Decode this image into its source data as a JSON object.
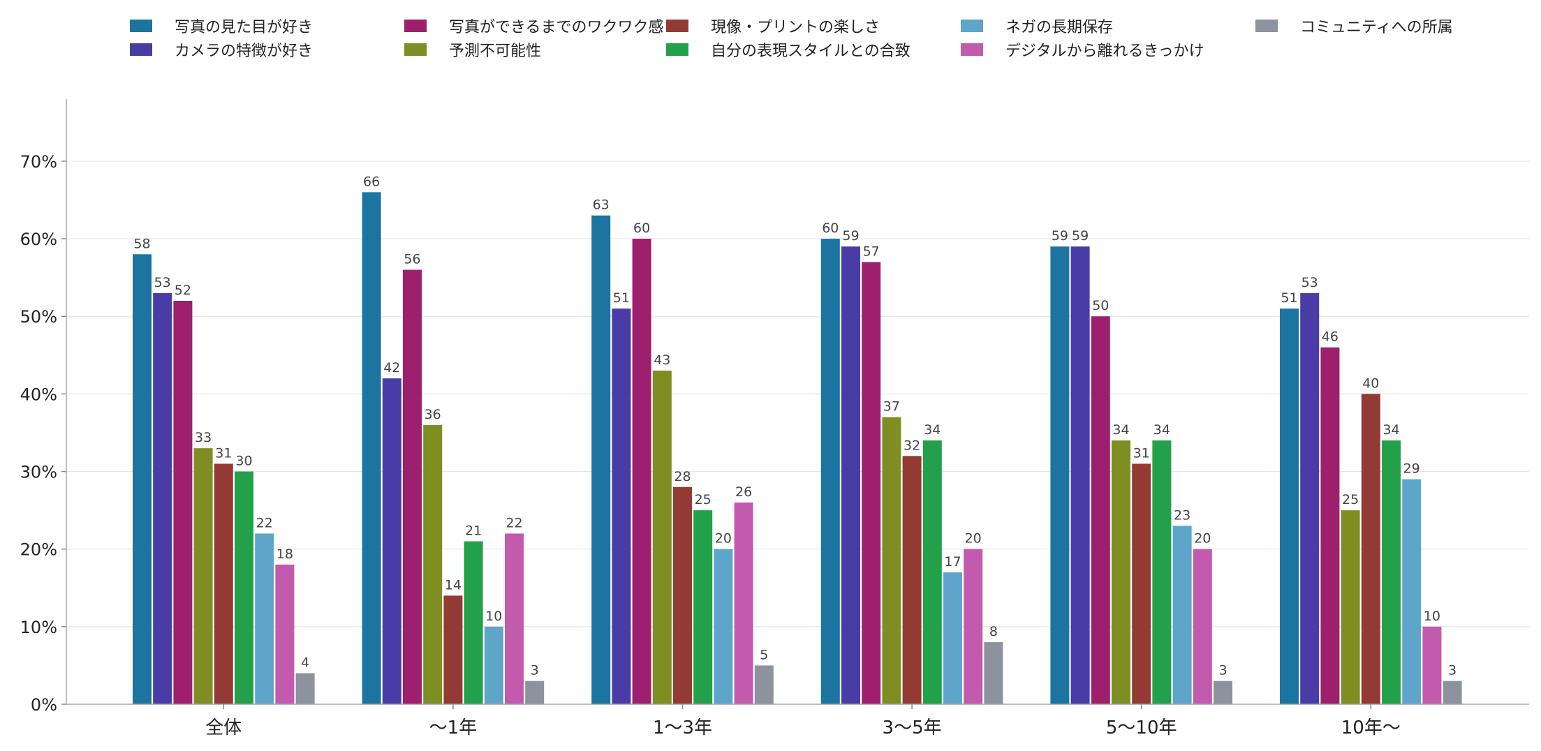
{
  "chart_data": {
    "type": "bar",
    "categories": [
      "全体",
      "〜1年",
      "1〜3年",
      "3〜5年",
      "5〜10年",
      "10年〜"
    ],
    "series": [
      {
        "name": "写真の見た目が好き",
        "color": "#1b75a0",
        "values": [
          58,
          66,
          63,
          60,
          59,
          51
        ]
      },
      {
        "name": "カメラの特徴が好き",
        "color": "#4a3ca6",
        "values": [
          53,
          42,
          51,
          59,
          59,
          53
        ]
      },
      {
        "name": "写真ができるまでのワクワク感",
        "color": "#9e1f6e",
        "values": [
          52,
          56,
          60,
          57,
          50,
          46
        ]
      },
      {
        "name": "予測不可能性",
        "color": "#7e8e22",
        "values": [
          33,
          36,
          43,
          37,
          34,
          25
        ]
      },
      {
        "name": "現像・プリントの楽しさ",
        "color": "#933a35",
        "values": [
          31,
          14,
          28,
          32,
          31,
          40
        ]
      },
      {
        "name": "自分の表現スタイルとの合致",
        "color": "#23a04a",
        "values": [
          30,
          21,
          25,
          34,
          34,
          34
        ]
      },
      {
        "name": "ネガの長期保存",
        "color": "#5ea5cb",
        "values": [
          22,
          10,
          20,
          17,
          23,
          29
        ]
      },
      {
        "name": "デジタルから離れるきっかけ",
        "color": "#c25aad",
        "values": [
          18,
          22,
          26,
          20,
          20,
          10
        ]
      },
      {
        "name": "コミュニティへの所属",
        "color": "#8c929e",
        "values": [
          4,
          3,
          5,
          8,
          3,
          3
        ]
      }
    ],
    "ylim": [
      0,
      78
    ],
    "yticks": [
      "0%",
      "10%",
      "20%",
      "30%",
      "40%",
      "50%",
      "60%",
      "70%"
    ],
    "grid": true,
    "legend_position": "top"
  }
}
